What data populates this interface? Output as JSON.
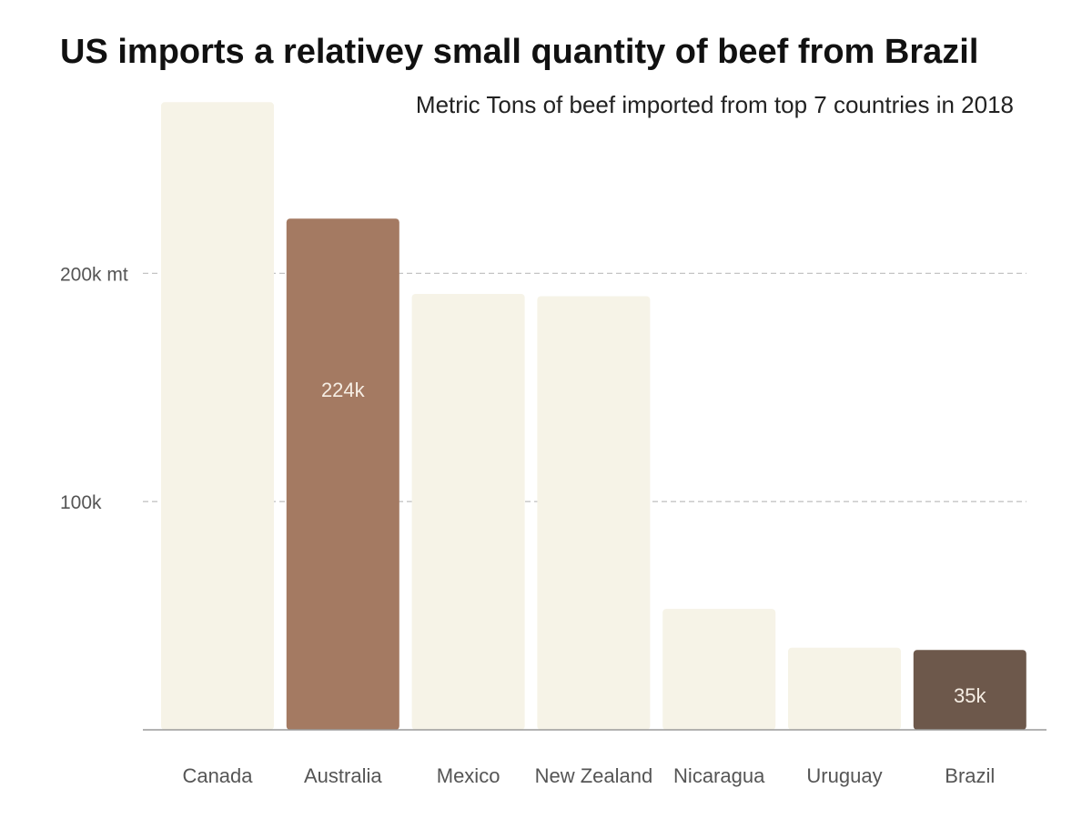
{
  "chart_data": {
    "type": "bar",
    "title": "US imports a relativey small quantity of beef from Brazil",
    "subtitle": "Metric Tons of beef imported from top 7 countries in 2018",
    "xlabel": "",
    "ylabel": "",
    "categories": [
      "Canada",
      "Australia",
      "Mexico",
      "New Zealand",
      "Nicaragua",
      "Uruguay",
      "Brazil"
    ],
    "values": [
      275,
      224,
      191,
      190,
      53,
      36,
      35
    ],
    "ylim": [
      0,
      280
    ],
    "yticks": [
      {
        "value": 100,
        "label": "100k"
      },
      {
        "value": 200,
        "label": "200k mt"
      }
    ],
    "grid": "horizontal dashed",
    "data_labels": [
      "",
      "224k",
      "",
      "",
      "",
      "",
      "35k"
    ],
    "colors": {
      "default": "#f6f3e7",
      "Australia": "#a47a62",
      "Brazil": "#6d584b"
    }
  }
}
